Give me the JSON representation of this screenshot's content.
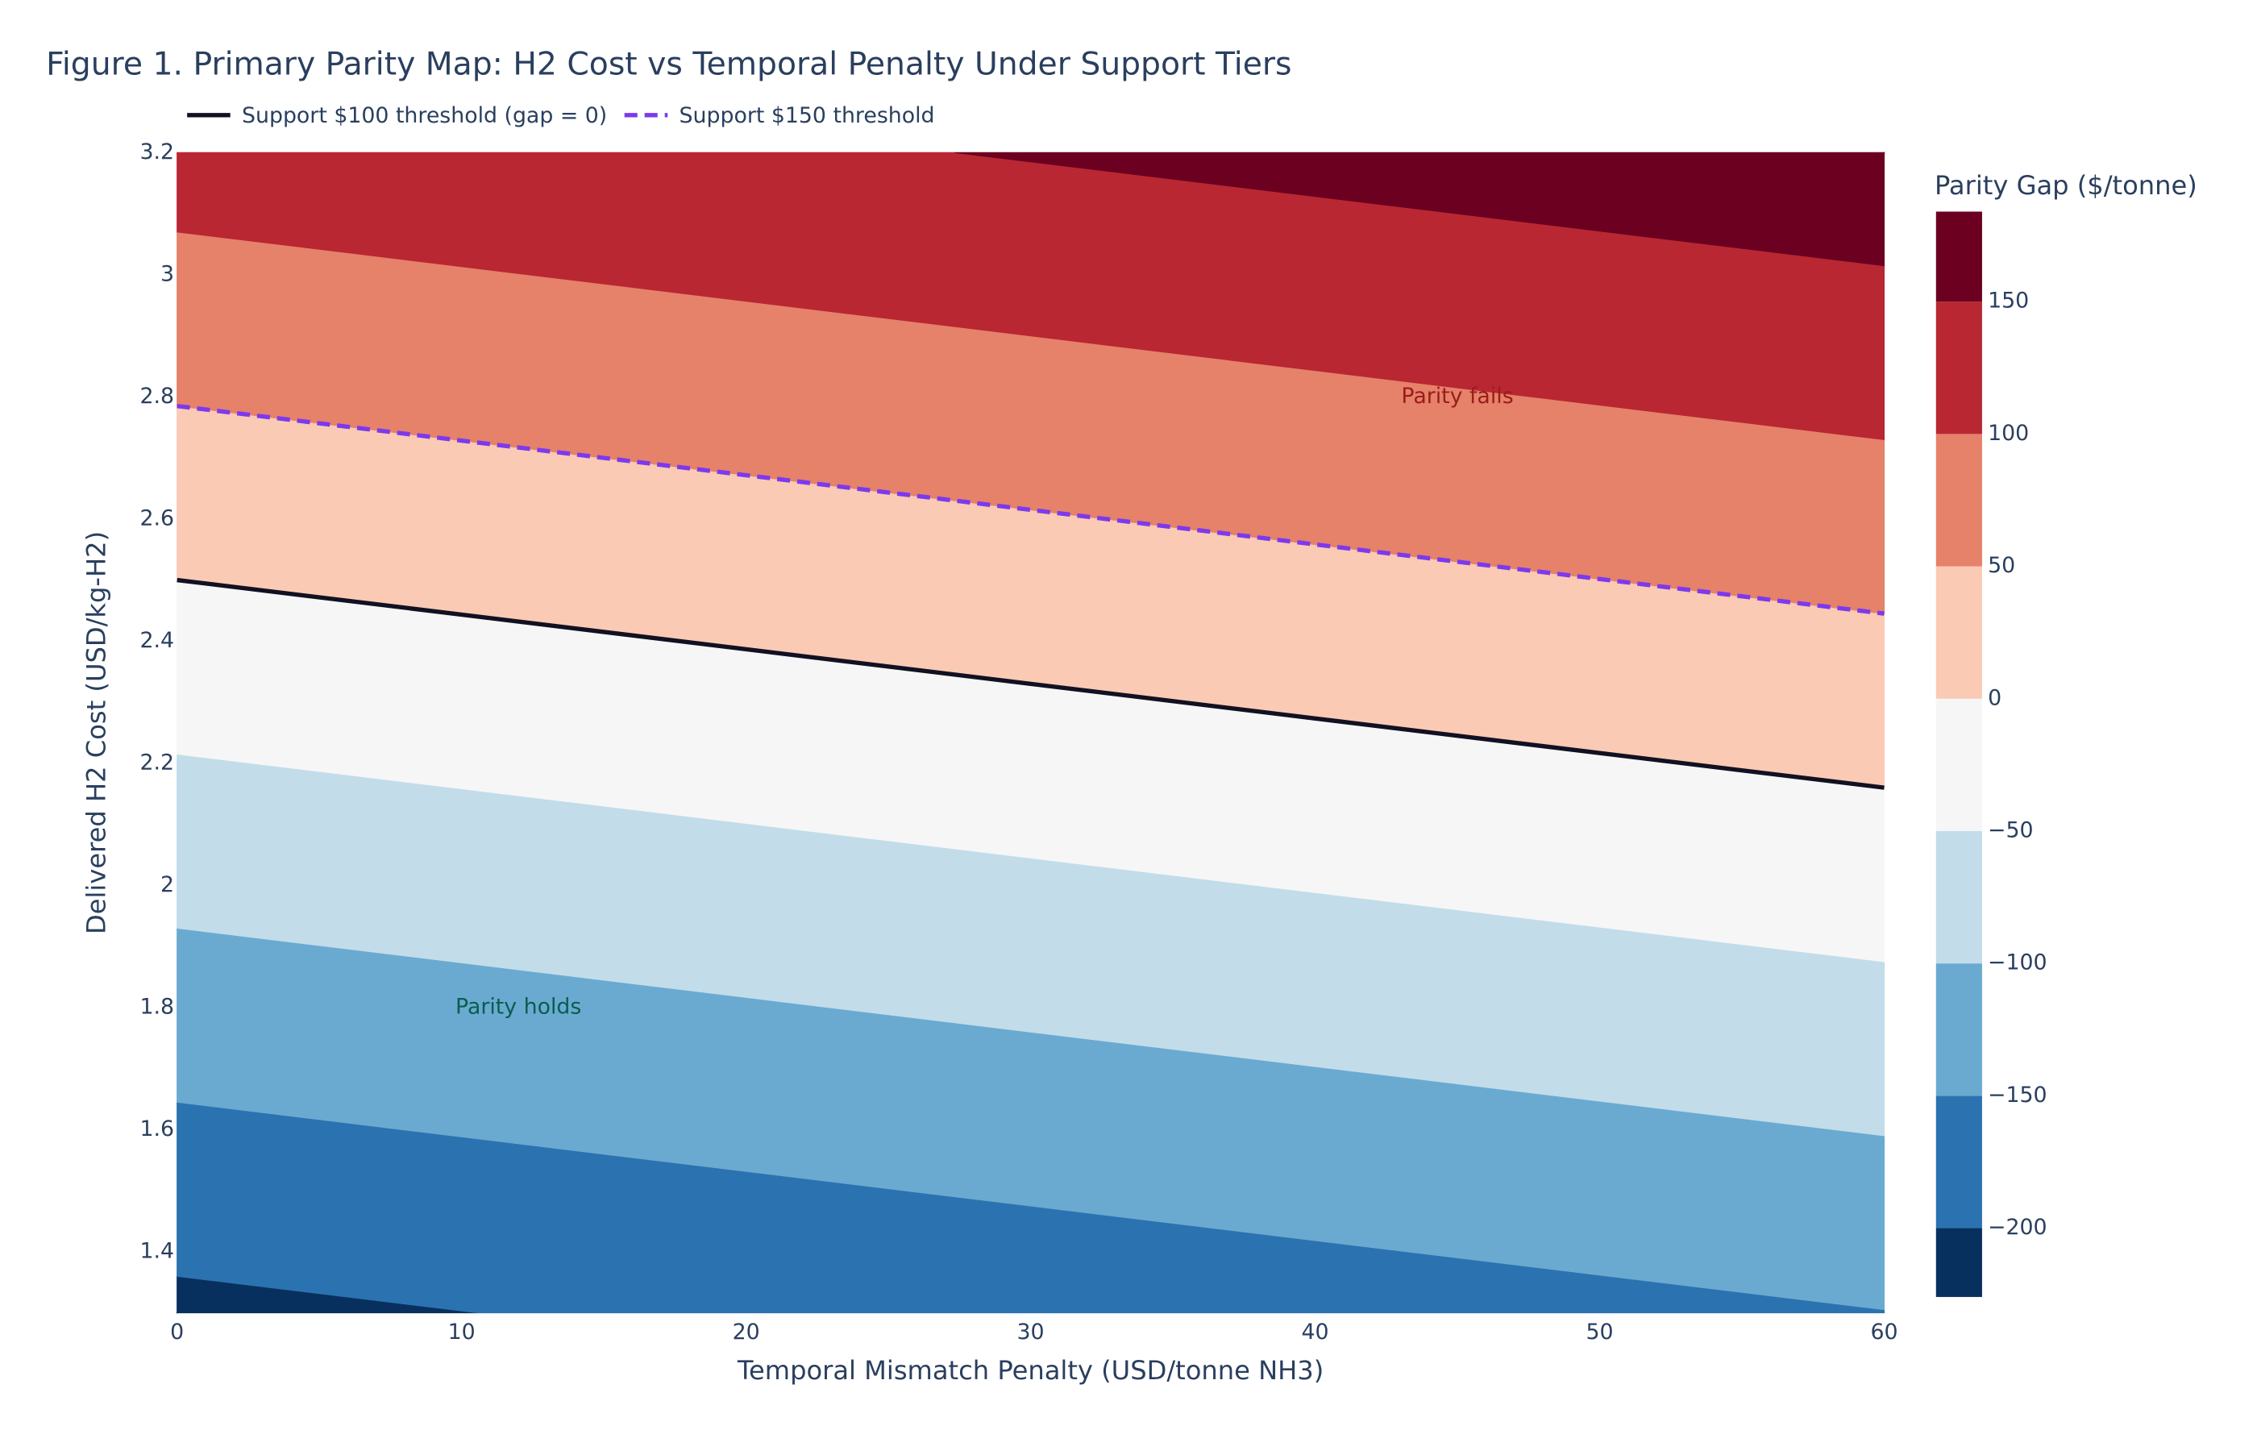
{
  "chart_data": {
    "type": "contour",
    "title": "Figure 1. Primary Parity Map: H2 Cost vs Temporal Penalty Under Support Tiers",
    "xlabel": "Temporal Mismatch Penalty (USD/tonne NH3)",
    "ylabel": "Delivered H2 Cost (USD/kg-H2)",
    "x": [
      0,
      60
    ],
    "y": [
      1.3,
      3.2
    ],
    "z": [
      [
        -210.5,
        -150.9
      ],
      [
        122.8,
        182.5
      ]
    ],
    "xlim": [
      0,
      60
    ],
    "ylim": [
      1.3,
      3.2
    ],
    "xticks": [
      0,
      10,
      20,
      30,
      40,
      50,
      60
    ],
    "yticks": [
      1.4,
      1.6,
      1.8,
      2,
      2.2,
      2.4,
      2.6,
      2.8,
      3,
      3.2
    ],
    "contour_levels": [
      -200,
      -150,
      -100,
      -50,
      0,
      50,
      100,
      150
    ],
    "band_colors": [
      "#08305e",
      "#2b72b0",
      "#6aaad1",
      "#c2dcea",
      "#f6f6f6",
      "#fbcab4",
      "#e6816a",
      "#b92733",
      "#6b0020"
    ],
    "colorbar_title": "Parity Gap ($/tonne)",
    "colorbar_lim": [
      -226,
      184
    ],
    "colorbar_ticks": [
      {
        "value": -200,
        "label": "−200"
      },
      {
        "value": -150,
        "label": "−150"
      },
      {
        "value": -100,
        "label": "−100"
      },
      {
        "value": -50,
        "label": "−50"
      },
      0,
      50,
      100,
      150
    ],
    "series": [
      {
        "name": "Support $100 threshold (gap = 0)",
        "color": "#111122",
        "dash": false,
        "x": [
          0,
          60
        ],
        "values": [
          2.5,
          2.16
        ]
      },
      {
        "name": "Support $150 threshold",
        "color": "#7b3aed",
        "dash": true,
        "x": [
          0,
          60
        ],
        "values": [
          2.785,
          2.445
        ]
      }
    ],
    "annotations": [
      {
        "text": "Parity fails",
        "x": 45,
        "y": 2.8,
        "color": "#9b1c1c"
      },
      {
        "text": "Parity holds",
        "x": 12,
        "y": 1.8,
        "color": "#0b5d4f"
      }
    ]
  }
}
